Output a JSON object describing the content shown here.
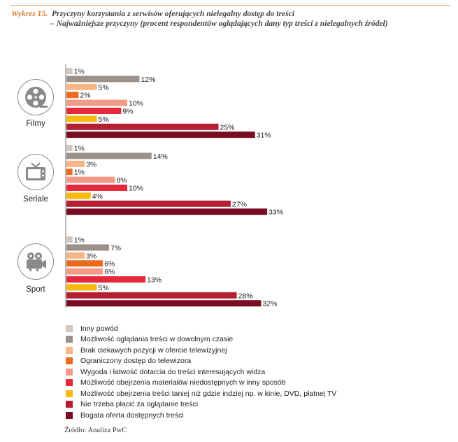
{
  "header": {
    "label": "Wykres 15.",
    "line1": "Przyczyny korzystania z serwisów oferujących nielegalny dostęp do treści",
    "line2": "– Najważniejsze przyczyny (procent respondentów oglądających dany typ treści z nielegalnych źródeł)"
  },
  "chart_data": {
    "type": "bar",
    "orientation": "horizontal",
    "unit": "%",
    "categories": [
      "Filmy",
      "Seriale",
      "Sport"
    ],
    "series": [
      {
        "name": "Inny powód",
        "color": "#cfc7c0",
        "values": [
          1,
          1,
          1
        ]
      },
      {
        "name": "Możliwość oglądania treści w dowolnym czasie",
        "color": "#9c9088",
        "values": [
          12,
          14,
          7
        ]
      },
      {
        "name": "Brak ciekawych pozycji w ofercie telewizyjnej",
        "color": "#f7b684",
        "values": [
          5,
          3,
          3
        ]
      },
      {
        "name": "Ograniczony dostęp do telewizora",
        "color": "#ea6b1d",
        "values": [
          2,
          1,
          6
        ]
      },
      {
        "name": "Wygoda i łatwość dotarcia do treści interesujących widza",
        "color": "#f39a87",
        "values": [
          10,
          8,
          6
        ]
      },
      {
        "name": "Możliwość obejrzenia materiałów niedostępnych w inny sposób",
        "color": "#e6283c",
        "values": [
          9,
          10,
          13
        ]
      },
      {
        "name": "Możliwość obejrzenia treści taniej niż gdzie indziej np. w kinie, DVD, płatnej TV",
        "color": "#f7b90c",
        "values": [
          5,
          4,
          5
        ]
      },
      {
        "name": "Nie trzeba płacić za oglądanie treści",
        "color": "#b41f32",
        "values": [
          25,
          27,
          28
        ]
      },
      {
        "name": "Bogata oferta dostępnych treści",
        "color": "#7a0c22",
        "values": [
          31,
          33,
          32
        ]
      }
    ],
    "value_labels": {
      "Filmy": [
        "1%",
        "12%",
        "5%",
        "2%",
        "10%",
        "9%",
        "5%",
        "25%",
        "31%"
      ],
      "Seriale": [
        "1%",
        "14%",
        "3%",
        "1%",
        "8%",
        "10%",
        "4%",
        "27%",
        "33%"
      ],
      "Sport": [
        "1%",
        "7%",
        "3%",
        "6%",
        "6%",
        "13%",
        "5%",
        "28%",
        "32%"
      ]
    },
    "legend_position": "bottom",
    "icons": [
      "film-reel-icon",
      "tv-icon",
      "video-camera-icon"
    ]
  },
  "source": "Źródło: Analiza PwC"
}
